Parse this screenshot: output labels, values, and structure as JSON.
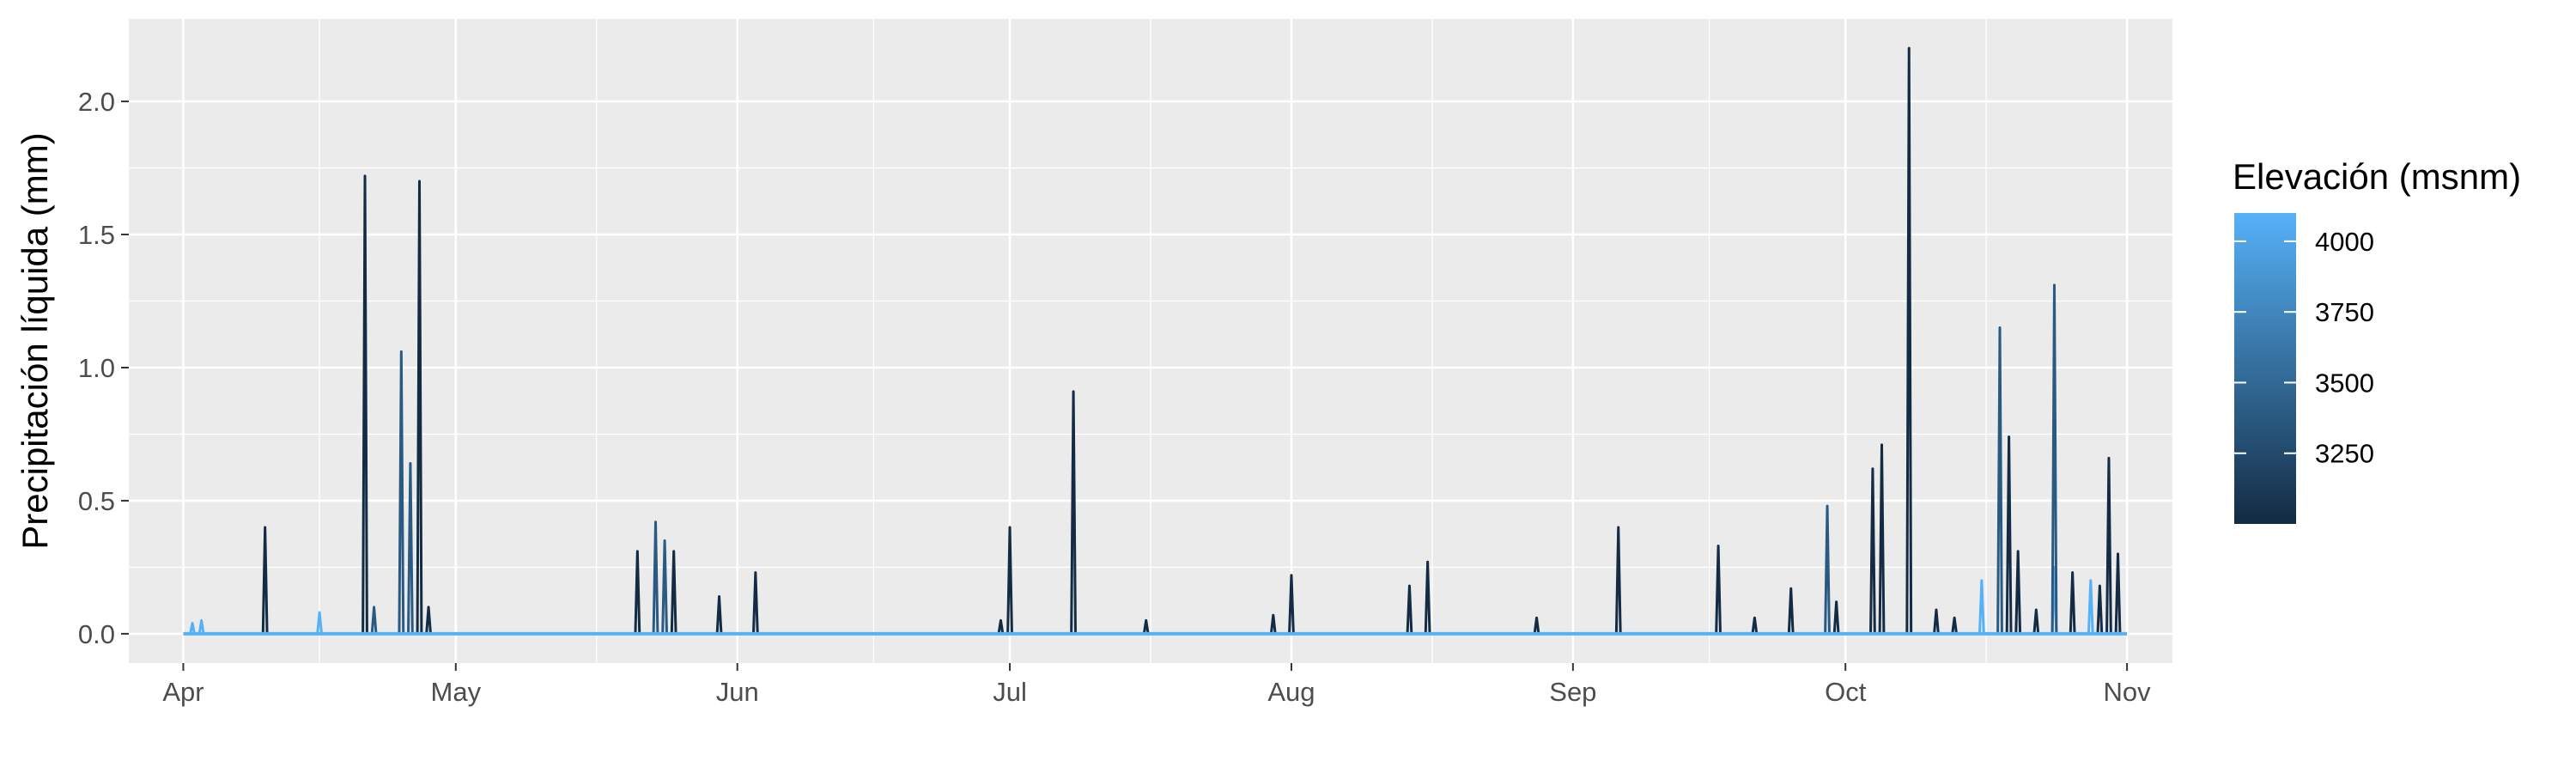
{
  "chart_data": {
    "type": "line",
    "title": "",
    "xlabel": "",
    "ylabel": "Precipitación líquida (mm)",
    "x_tick_labels": [
      "Apr",
      "May",
      "Jun",
      "Jul",
      "Aug",
      "Sep",
      "Oct",
      "Nov"
    ],
    "x_tick_dates": [
      "2000-04-01",
      "2000-05-01",
      "2000-06-01",
      "2000-07-01",
      "2000-08-01",
      "2000-09-01",
      "2000-10-01",
      "2000-11-01"
    ],
    "xlim": [
      "2000-03-26",
      "2000-11-06"
    ],
    "y_ticks": [
      0.0,
      0.5,
      1.0,
      1.5,
      2.0
    ],
    "y_tick_labels": [
      "0.0",
      "0.5",
      "1.0",
      "1.5",
      "2.0"
    ],
    "ylim": [
      -0.11,
      2.31
    ],
    "grid": true,
    "background_color": "#ebebeb",
    "legend": {
      "title": "Elevación (msnm)",
      "position": "right",
      "type": "colorbar",
      "ticks": [
        3250,
        3500,
        3750,
        4000
      ],
      "tick_labels": [
        "3250",
        "3500",
        "3750",
        "4000"
      ],
      "range": [
        3000,
        4100
      ],
      "color_low": "#132b43",
      "color_high": "#56b1f7"
    },
    "series": [
      {
        "elevation": 4100,
        "color": "#56b1f7",
        "baseline": 0,
        "events": [
          {
            "date": "2000-04-02",
            "value": 0.04
          },
          {
            "date": "2000-04-03",
            "value": 0.05
          },
          {
            "date": "2000-04-16",
            "value": 0.08
          },
          {
            "date": "2000-10-16",
            "value": 0.2
          },
          {
            "date": "2000-10-24",
            "value": 0.25
          },
          {
            "date": "2000-10-28",
            "value": 0.2
          }
        ]
      },
      {
        "elevation": 3400,
        "color": "#2a5a82",
        "baseline": 0,
        "events": [
          {
            "date": "2000-04-22",
            "value": 0.1
          },
          {
            "date": "2000-04-25",
            "value": 1.06
          },
          {
            "date": "2000-04-26",
            "value": 0.64
          },
          {
            "date": "2000-05-23",
            "value": 0.42
          },
          {
            "date": "2000-05-24",
            "value": 0.35
          },
          {
            "date": "2000-09-29",
            "value": 0.48
          },
          {
            "date": "2000-10-18",
            "value": 1.15
          },
          {
            "date": "2000-10-24",
            "value": 1.31
          }
        ]
      },
      {
        "elevation": 3000,
        "color": "#132b43",
        "baseline": 0,
        "events": [
          {
            "date": "2000-04-10",
            "value": 0.4
          },
          {
            "date": "2000-04-21",
            "value": 1.72
          },
          {
            "date": "2000-04-27",
            "value": 1.7
          },
          {
            "date": "2000-04-28",
            "value": 0.1
          },
          {
            "date": "2000-05-21",
            "value": 0.31
          },
          {
            "date": "2000-05-25",
            "value": 0.31
          },
          {
            "date": "2000-05-30",
            "value": 0.14
          },
          {
            "date": "2000-06-03",
            "value": 0.23
          },
          {
            "date": "2000-06-30",
            "value": 0.05
          },
          {
            "date": "2000-07-01",
            "value": 0.4
          },
          {
            "date": "2000-07-08",
            "value": 0.91
          },
          {
            "date": "2000-07-16",
            "value": 0.05
          },
          {
            "date": "2000-07-30",
            "value": 0.07
          },
          {
            "date": "2000-08-01",
            "value": 0.22
          },
          {
            "date": "2000-08-14",
            "value": 0.18
          },
          {
            "date": "2000-08-16",
            "value": 0.27
          },
          {
            "date": "2000-08-28",
            "value": 0.06
          },
          {
            "date": "2000-09-06",
            "value": 0.4
          },
          {
            "date": "2000-09-17",
            "value": 0.33
          },
          {
            "date": "2000-09-21",
            "value": 0.06
          },
          {
            "date": "2000-09-25",
            "value": 0.17
          },
          {
            "date": "2000-09-30",
            "value": 0.12
          },
          {
            "date": "2000-10-04",
            "value": 0.62
          },
          {
            "date": "2000-10-05",
            "value": 0.71
          },
          {
            "date": "2000-10-08",
            "value": 2.2
          },
          {
            "date": "2000-10-11",
            "value": 0.09
          },
          {
            "date": "2000-10-13",
            "value": 0.06
          },
          {
            "date": "2000-10-19",
            "value": 0.74
          },
          {
            "date": "2000-10-20",
            "value": 0.31
          },
          {
            "date": "2000-10-22",
            "value": 0.09
          },
          {
            "date": "2000-10-26",
            "value": 0.23
          },
          {
            "date": "2000-10-29",
            "value": 0.18
          },
          {
            "date": "2000-10-30",
            "value": 0.66
          },
          {
            "date": "2000-10-31",
            "value": 0.3
          }
        ]
      }
    ]
  }
}
